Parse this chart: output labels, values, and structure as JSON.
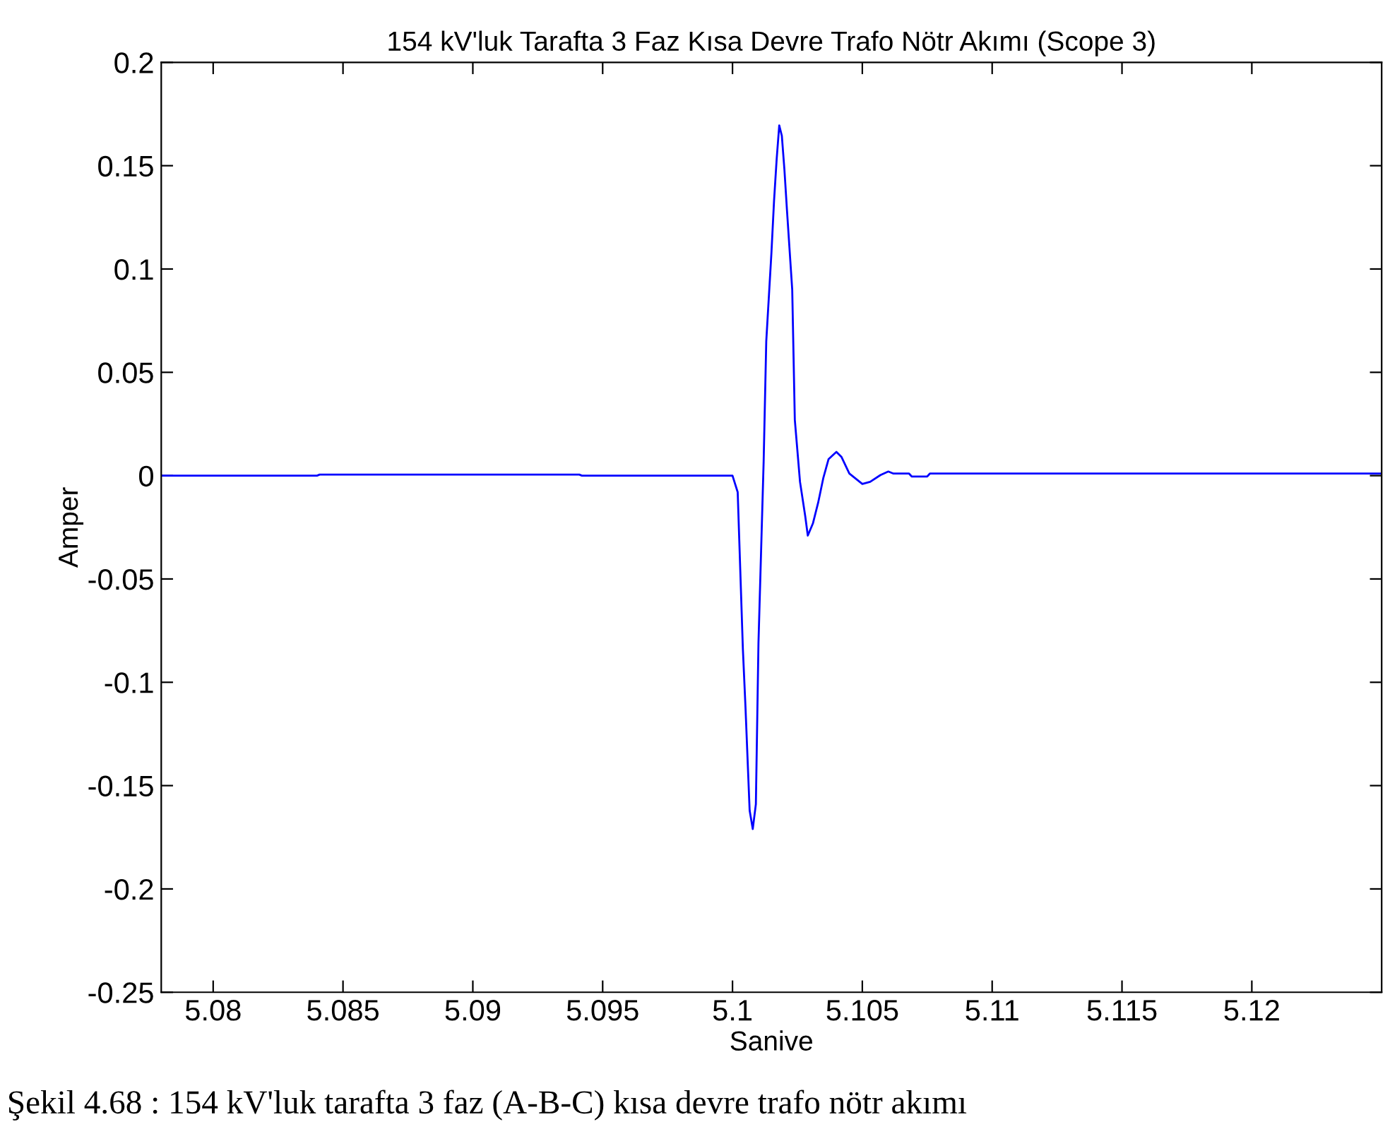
{
  "chart_data": {
    "type": "line",
    "title": "154 kV'luk Tarafta 3 Faz Kısa Devre Trafo Nötr Akımı (Scope 3)",
    "xlabel": "Sanive",
    "ylabel": "Amper",
    "annotations": [
      "Şekil 4.68 : 154 kV'luk tarafta 3 faz (A-B-C) kısa devre trafo nötr akımı"
    ],
    "series": [
      {
        "color": "#0000ff",
        "x": [
          5.078,
          5.084,
          5.0841,
          5.0941,
          5.0942,
          5.1,
          5.1002,
          5.1003,
          5.1004,
          5.1005,
          5.10066,
          5.10078,
          5.1009,
          5.101,
          5.1012,
          5.1013,
          5.1015,
          5.1016,
          5.1017,
          5.1018,
          5.1019,
          5.102,
          5.1021,
          5.1023,
          5.1024,
          5.1026,
          5.1028,
          5.1029,
          5.1031,
          5.1033,
          5.1035,
          5.1037,
          5.104,
          5.1042,
          5.1045,
          5.105,
          5.1053,
          5.1057,
          5.106,
          5.1062,
          5.1068,
          5.1069,
          5.1075,
          5.1076,
          5.125
        ],
        "values": [
          0,
          0,
          0.0005,
          0.0005,
          0,
          0,
          -0.008,
          -0.046,
          -0.084,
          -0.112,
          -0.162,
          -0.171,
          -0.159,
          -0.081,
          0.007,
          0.065,
          0.108,
          0.133,
          0.153,
          0.1695,
          0.1645,
          0.148,
          0.128,
          0.09,
          0.027,
          -0.003,
          -0.0195,
          -0.029,
          -0.023,
          -0.013,
          -0.001,
          0.008,
          0.0115,
          0.009,
          0.001,
          -0.004,
          -0.003,
          0.0003,
          0.002,
          0.001,
          0.001,
          -0.0004,
          -0.0004,
          0.001,
          0.001
        ]
      }
    ],
    "xlim": [
      5.078,
      5.125
    ],
    "ylim": [
      -0.25,
      0.2
    ],
    "xticks": [
      5.08,
      5.085,
      5.09,
      5.095,
      5.1,
      5.105,
      5.11,
      5.115,
      5.12
    ],
    "yticks": [
      -0.25,
      -0.2,
      -0.15,
      -0.1,
      -0.05,
      0,
      0.05,
      0.1,
      0.15,
      0.2
    ],
    "grid": false,
    "legend": false
  }
}
